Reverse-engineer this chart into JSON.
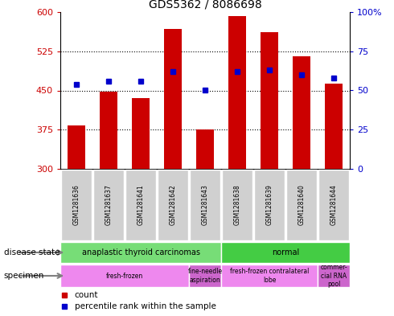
{
  "title": "GDS5362 / 8086698",
  "samples": [
    "GSM1281636",
    "GSM1281637",
    "GSM1281641",
    "GSM1281642",
    "GSM1281643",
    "GSM1281638",
    "GSM1281639",
    "GSM1281640",
    "GSM1281644"
  ],
  "counts": [
    383,
    447,
    435,
    567,
    376,
    592,
    562,
    515,
    463
  ],
  "percentiles": [
    54,
    56,
    56,
    62,
    50,
    62,
    63,
    60,
    58
  ],
  "ylim_left": [
    300,
    600
  ],
  "ylim_right": [
    0,
    100
  ],
  "yticks_left": [
    300,
    375,
    450,
    525,
    600
  ],
  "yticks_right": [
    0,
    25,
    50,
    75,
    100
  ],
  "bar_color": "#cc0000",
  "dot_color": "#0000cc",
  "bar_base": 300,
  "disease_state": [
    {
      "label": "anaplastic thyroid carcinomas",
      "start": 0,
      "end": 5,
      "color": "#77dd77"
    },
    {
      "label": "normal",
      "start": 5,
      "end": 9,
      "color": "#44cc44"
    }
  ],
  "specimen": [
    {
      "label": "fresh-frozen",
      "start": 0,
      "end": 4,
      "color": "#ee88ee"
    },
    {
      "label": "fine-needle\naspiration",
      "start": 4,
      "end": 5,
      "color": "#cc66cc"
    },
    {
      "label": "fresh-frozen contralateral\nlobe",
      "start": 5,
      "end": 8,
      "color": "#ee88ee"
    },
    {
      "label": "commer-\ncial RNA\npool",
      "start": 8,
      "end": 9,
      "color": "#cc66cc"
    }
  ],
  "legend_count_label": "count",
  "legend_percentile_label": "percentile rank within the sample",
  "ylabel_left_color": "#cc0000",
  "ylabel_right_color": "#0000cc",
  "background_color": "#ffffff",
  "plot_bg_color": "#ffffff",
  "sample_box_color": "#d0d0d0",
  "disease_state_label": "disease state",
  "specimen_label": "specimen",
  "grid_lines": [
    375,
    450,
    525
  ]
}
